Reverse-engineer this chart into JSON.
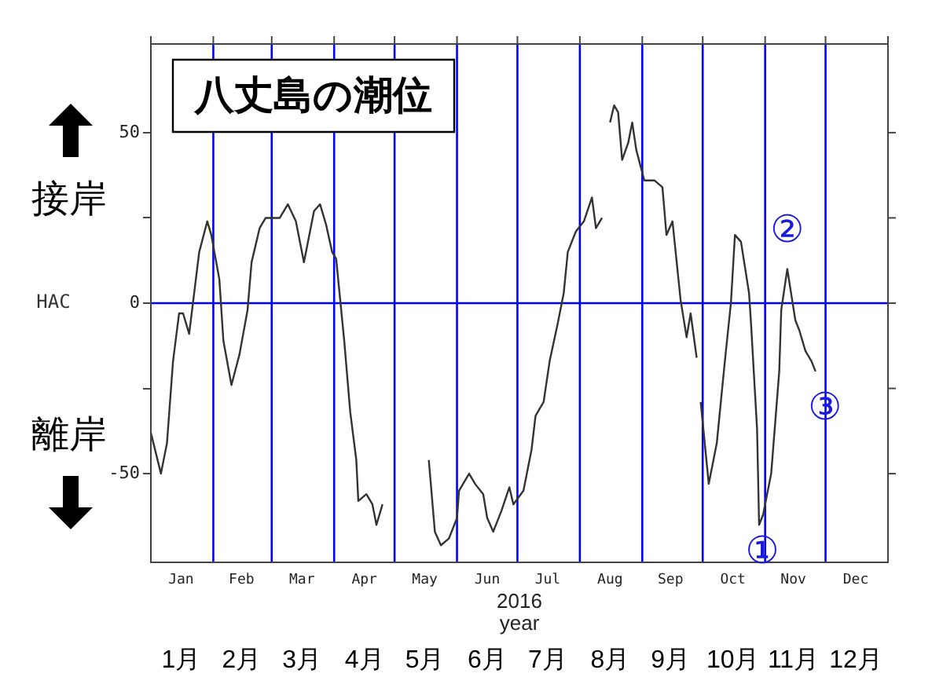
{
  "chart_data": {
    "type": "line",
    "title": "八丈島の潮位",
    "xlabel": "year",
    "ylabel": "HAC",
    "annotations": [
      "2016",
      "接岸",
      "離岸",
      {
        "text": "①",
        "x": "2016-10-29",
        "y": -65
      },
      {
        "text": "②",
        "x": "2016-11-12",
        "y": 10
      },
      {
        "text": "③",
        "x": "2016-11-26",
        "y": -20
      }
    ],
    "x": [
      "2016-01-01",
      "2016-01-06",
      "2016-01-09",
      "2016-01-12",
      "2016-01-15",
      "2016-01-17",
      "2016-01-20",
      "2016-01-25",
      "2016-01-29",
      "2016-01-31",
      "2016-02-04",
      "2016-02-06",
      "2016-02-10",
      "2016-02-14",
      "2016-02-18",
      "2016-02-20",
      "2016-02-24",
      "2016-02-27",
      "2016-03-05",
      "2016-03-09",
      "2016-03-13",
      "2016-03-17",
      "2016-03-22",
      "2016-03-25",
      "2016-03-28",
      "2016-03-31",
      "2016-04-02",
      "2016-04-06",
      "2016-04-09",
      "2016-04-12",
      "2016-04-13",
      "2016-04-17",
      "2016-04-20",
      "2016-04-22",
      "2016-04-25",
      "2016-05-05",
      "2016-05-18",
      "2016-05-21",
      "2016-05-24",
      "2016-05-28",
      "2016-06-01",
      "2016-06-02",
      "2016-06-07",
      "2016-06-10",
      "2016-06-14",
      "2016-06-16",
      "2016-06-19",
      "2016-06-23",
      "2016-06-27",
      "2016-06-29",
      "2016-07-04",
      "2016-07-08",
      "2016-07-10",
      "2016-07-14",
      "2016-07-17",
      "2016-07-21",
      "2016-07-24",
      "2016-07-26",
      "2016-07-30",
      "2016-08-03",
      "2016-08-07",
      "2016-08-09",
      "2016-08-12",
      "2016-08-14",
      "2016-08-16",
      "2016-08-18",
      "2016-08-20",
      "2016-08-22",
      "2016-08-25",
      "2016-08-27",
      "2016-08-29",
      "2016-09-02",
      "2016-09-07",
      "2016-09-11",
      "2016-09-13",
      "2016-09-16",
      "2016-09-20",
      "2016-09-23",
      "2016-09-25",
      "2016-09-28",
      "2016-09-29",
      "2016-09-30",
      "2016-10-04",
      "2016-10-08",
      "2016-10-12",
      "2016-10-15",
      "2016-10-17",
      "2016-10-20",
      "2016-10-24",
      "2016-10-25",
      "2016-10-28",
      "2016-10-29",
      "2016-10-31",
      "2016-11-04",
      "2016-11-08",
      "2016-11-09",
      "2016-11-12",
      "2016-11-16",
      "2016-11-18",
      "2016-11-21",
      "2016-11-24",
      "2016-11-26"
    ],
    "series": [
      {
        "color": "#333333",
        "values": [
          -38,
          -50,
          -41,
          -17,
          -3,
          -3,
          -9,
          15,
          24,
          20,
          7,
          -11,
          -24,
          -15,
          -2,
          12,
          22,
          25,
          25,
          29,
          24,
          12,
          27,
          29,
          23,
          15,
          13,
          -11,
          -32,
          -46,
          -58,
          -56,
          -59,
          -65,
          -59,
          null,
          -46,
          -67,
          -71,
          -69,
          -63,
          -55,
          -50,
          -53,
          -56,
          -63,
          -67,
          -61,
          -54,
          -59,
          -55,
          -43,
          -33,
          -29,
          -17,
          -6,
          3,
          15,
          21,
          24,
          31,
          22,
          25,
          null,
          53,
          58,
          56,
          42,
          47,
          53,
          45,
          36,
          36,
          34,
          20,
          24,
          1,
          -10,
          -3,
          -16,
          null,
          -29,
          -53,
          -41,
          -17,
          0,
          20,
          18,
          3,
          -6,
          -37,
          -65,
          -62,
          -50,
          -20,
          -2,
          10,
          -5,
          -8,
          -14,
          -17,
          -20
        ]
      }
    ],
    "xlim": [
      "2016-01-01",
      "2017-01-01"
    ],
    "xticks": [
      {
        "value": "2016-01-16",
        "label": "Jan"
      },
      {
        "value": "2016-02-15",
        "label": "Feb"
      },
      {
        "value": "2016-03-16",
        "label": "Mar"
      },
      {
        "value": "2016-04-16",
        "label": "Apr"
      },
      {
        "value": "2016-05-16",
        "label": "May"
      },
      {
        "value": "2016-06-16",
        "label": "Jun"
      },
      {
        "value": "2016-07-16",
        "label": "Jul"
      },
      {
        "value": "2016-08-16",
        "label": "Aug"
      },
      {
        "value": "2016-09-15",
        "label": "Sep"
      },
      {
        "value": "2016-10-16",
        "label": "Oct"
      },
      {
        "value": "2016-11-15",
        "label": "Nov"
      },
      {
        "value": "2016-12-16",
        "label": "Dec"
      },
      {
        "value": "2016-01-01",
        "label": null
      },
      {
        "value": "2016-02-01",
        "label": null
      },
      {
        "value": "2016-03-01",
        "label": null
      },
      {
        "value": "2016-04-01",
        "label": null
      },
      {
        "value": "2016-05-01",
        "label": null
      },
      {
        "value": "2016-06-01",
        "label": null
      },
      {
        "value": "2016-07-01",
        "label": null
      },
      {
        "value": "2016-08-01",
        "label": null
      },
      {
        "value": "2016-09-01",
        "label": null
      },
      {
        "value": "2016-10-01",
        "label": null
      },
      {
        "value": "2016-11-01",
        "label": null
      },
      {
        "value": "2016-12-01",
        "label": null
      },
      {
        "value": "2017-01-01",
        "label": null
      }
    ],
    "x2lim": [
      "2016-01-01",
      "2017-01-01"
    ],
    "x2ticks": [
      {
        "value": "2016-01-16",
        "label": "1月"
      },
      {
        "value": "2016-02-15",
        "label": "2月"
      },
      {
        "value": "2016-03-16",
        "label": "3月"
      },
      {
        "value": "2016-04-16",
        "label": "4月"
      },
      {
        "value": "2016-05-16",
        "label": "5月"
      },
      {
        "value": "2016-06-16",
        "label": "6月"
      },
      {
        "value": "2016-07-16",
        "label": "7月"
      },
      {
        "value": "2016-08-16",
        "label": "8月"
      },
      {
        "value": "2016-09-15",
        "label": "9月"
      },
      {
        "value": "2016-10-16",
        "label": "10月"
      },
      {
        "value": "2016-11-15",
        "label": "11月"
      },
      {
        "value": "2016-12-16",
        "label": "12月"
      }
    ],
    "ylim": [
      -76,
      76
    ],
    "yticks": [
      -50,
      {
        "value": -25,
        "label": null
      },
      0,
      {
        "value": 25,
        "label": null
      },
      50
    ],
    "ref_lines": [
      {
        "axis": "y",
        "value": 0,
        "color": "#0000ff"
      },
      {
        "axis": "x",
        "value": "2016-02-01",
        "color": "#0000ff"
      },
      {
        "axis": "x",
        "value": "2016-03-01",
        "color": "#0000ff"
      },
      {
        "axis": "x",
        "value": "2016-04-01",
        "color": "#0000ff"
      },
      {
        "axis": "x",
        "value": "2016-05-01",
        "color": "#0000ff"
      },
      {
        "axis": "x",
        "value": "2016-06-01",
        "color": "#0000ff"
      },
      {
        "axis": "x",
        "value": "2016-07-01",
        "color": "#0000ff"
      },
      {
        "axis": "x",
        "value": "2016-08-01",
        "color": "#0000ff"
      },
      {
        "axis": "x",
        "value": "2016-09-01",
        "color": "#0000ff"
      },
      {
        "axis": "x",
        "value": "2016-10-01",
        "color": "#0000ff"
      },
      {
        "axis": "x",
        "value": "2016-11-01",
        "color": "#0000ff"
      },
      {
        "axis": "x",
        "value": "2016-12-01",
        "color": "#0000ff"
      }
    ],
    "grid": false,
    "legend": false
  }
}
